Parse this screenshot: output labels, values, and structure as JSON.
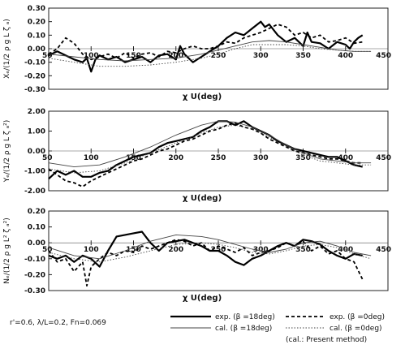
{
  "chart_data": [
    {
      "type": "line",
      "ylabel": "Xₑ/(1/2 ρ g L ζ ₐ)",
      "xlabel": "χ U(deg)",
      "xlim": [
        50,
        450
      ],
      "ylim": [
        -0.3,
        0.3
      ],
      "xticks": [
        "50",
        "100",
        "150",
        "200",
        "250",
        "300",
        "350",
        "400",
        "450"
      ],
      "yticks": [
        "0.30",
        "0.20",
        "0.10",
        "0.00",
        "-0.10",
        "-0.20",
        "-0.30"
      ],
      "grid": false,
      "series": [
        {
          "key": "exp18",
          "x": [
            50,
            60,
            70,
            80,
            90,
            95,
            100,
            105,
            110,
            120,
            130,
            140,
            150,
            160,
            170,
            180,
            190,
            200,
            205,
            210,
            220,
            230,
            240,
            250,
            260,
            270,
            280,
            290,
            300,
            305,
            310,
            320,
            330,
            340,
            350,
            355,
            360,
            370,
            380,
            390,
            400,
            405,
            410,
            415,
            420
          ],
          "y": [
            -0.05,
            -0.02,
            -0.05,
            -0.08,
            -0.1,
            -0.07,
            -0.17,
            -0.08,
            -0.05,
            -0.08,
            -0.06,
            -0.1,
            -0.08,
            -0.06,
            -0.1,
            -0.05,
            -0.04,
            -0.08,
            0.02,
            -0.04,
            -0.1,
            -0.06,
            -0.02,
            0.02,
            0.08,
            0.12,
            0.1,
            0.15,
            0.2,
            0.16,
            0.18,
            0.1,
            0.05,
            0.08,
            0.02,
            0.12,
            0.05,
            0.04,
            0.0,
            0.05,
            0.03,
            0.0,
            0.05,
            0.08,
            0.1
          ]
        },
        {
          "key": "exp0",
          "x": [
            50,
            60,
            70,
            80,
            90,
            100,
            110,
            120,
            130,
            140,
            150,
            160,
            170,
            180,
            190,
            200,
            210,
            220,
            230,
            240,
            250,
            260,
            270,
            280,
            290,
            300,
            310,
            320,
            330,
            340,
            350,
            360,
            370,
            380,
            390,
            400,
            410,
            420
          ],
          "y": [
            -0.04,
            0.0,
            0.08,
            0.04,
            -0.04,
            -0.08,
            -0.06,
            -0.04,
            -0.07,
            -0.03,
            -0.07,
            -0.04,
            -0.03,
            -0.06,
            -0.02,
            -0.03,
            0.0,
            0.02,
            0.0,
            0.0,
            0.02,
            0.05,
            0.04,
            0.08,
            0.1,
            0.12,
            0.15,
            0.18,
            0.16,
            0.1,
            0.12,
            0.08,
            0.1,
            0.05,
            0.06,
            0.08,
            0.04,
            0.05
          ]
        },
        {
          "key": "cal18",
          "x": [
            50,
            80,
            110,
            140,
            170,
            200,
            230,
            250,
            270,
            290,
            310,
            330,
            350,
            370,
            390,
            410,
            430
          ],
          "y": [
            -0.04,
            -0.06,
            -0.08,
            -0.09,
            -0.08,
            -0.07,
            -0.04,
            -0.01,
            0.02,
            0.05,
            0.06,
            0.05,
            0.03,
            0.01,
            -0.01,
            -0.02,
            -0.02
          ]
        },
        {
          "key": "cal0",
          "x": [
            50,
            80,
            110,
            140,
            170,
            200,
            230,
            250,
            270,
            290,
            310,
            330,
            350,
            370,
            390,
            410,
            430
          ],
          "y": [
            -0.07,
            -0.1,
            -0.13,
            -0.13,
            -0.12,
            -0.1,
            -0.07,
            -0.04,
            0.0,
            0.03,
            0.03,
            0.03,
            0.02,
            0.0,
            -0.01,
            -0.02,
            -0.02
          ]
        }
      ]
    },
    {
      "type": "line",
      "ylabel": "Yₑ/(1/2 ρ g L ζ ₐ²)",
      "xlabel": "χ U(deg)",
      "xlim": [
        50,
        450
      ],
      "ylim": [
        -2.0,
        2.0
      ],
      "xticks": [
        "50",
        "100",
        "150",
        "200",
        "250",
        "300",
        "350",
        "400",
        "450"
      ],
      "yticks": [
        "2.00",
        "1.00",
        "0.00",
        "-1.00",
        "-2.00"
      ],
      "grid": false,
      "series": [
        {
          "key": "exp18",
          "x": [
            50,
            60,
            70,
            80,
            90,
            100,
            110,
            120,
            130,
            140,
            150,
            160,
            170,
            180,
            190,
            200,
            210,
            220,
            230,
            240,
            250,
            260,
            270,
            280,
            290,
            300,
            310,
            320,
            330,
            340,
            350,
            360,
            370,
            380,
            390,
            400,
            410,
            420
          ],
          "y": [
            -1.4,
            -1.0,
            -1.2,
            -1.0,
            -1.3,
            -1.3,
            -1.1,
            -1.0,
            -0.7,
            -0.5,
            -0.3,
            -0.2,
            -0.1,
            0.2,
            0.4,
            0.5,
            0.6,
            0.7,
            1.0,
            1.2,
            1.5,
            1.5,
            1.3,
            1.5,
            1.2,
            1.0,
            0.8,
            0.5,
            0.3,
            0.1,
            0.0,
            -0.1,
            -0.2,
            -0.3,
            -0.3,
            -0.5,
            -0.7,
            -0.8
          ]
        },
        {
          "key": "exp0",
          "x": [
            50,
            60,
            70,
            80,
            90,
            100,
            110,
            120,
            130,
            140,
            150,
            160,
            170,
            180,
            190,
            200,
            210,
            220,
            230,
            240,
            250,
            260,
            270,
            280,
            290,
            300,
            310,
            320,
            330,
            340,
            350,
            360,
            370,
            380,
            390,
            400,
            410,
            420
          ],
          "y": [
            -0.9,
            -1.2,
            -1.5,
            -1.6,
            -1.8,
            -1.5,
            -1.3,
            -1.1,
            -0.9,
            -0.7,
            -0.5,
            -0.4,
            -0.2,
            0.0,
            0.1,
            0.3,
            0.5,
            0.6,
            0.8,
            1.0,
            1.1,
            1.3,
            1.4,
            1.2,
            1.1,
            0.9,
            0.6,
            0.4,
            0.2,
            0.0,
            -0.1,
            -0.2,
            -0.3,
            -0.4,
            -0.4,
            -0.5,
            -0.6,
            -0.6
          ]
        },
        {
          "key": "cal18",
          "x": [
            50,
            80,
            110,
            140,
            170,
            200,
            230,
            250,
            270,
            290,
            310,
            330,
            350,
            370,
            390,
            410,
            430
          ],
          "y": [
            -0.6,
            -0.8,
            -0.7,
            -0.3,
            0.2,
            0.8,
            1.3,
            1.5,
            1.45,
            1.2,
            0.8,
            0.3,
            -0.1,
            -0.4,
            -0.5,
            -0.6,
            -0.6
          ]
        },
        {
          "key": "cal0",
          "x": [
            50,
            80,
            110,
            140,
            170,
            200,
            230,
            250,
            270,
            290,
            310,
            330,
            350,
            370,
            390,
            410,
            430
          ],
          "y": [
            -0.9,
            -1.1,
            -1.0,
            -0.6,
            -0.1,
            0.4,
            0.9,
            1.2,
            1.3,
            1.1,
            0.7,
            0.2,
            -0.2,
            -0.5,
            -0.6,
            -0.7,
            -0.7
          ]
        }
      ]
    },
    {
      "type": "line",
      "ylabel": "Nₑ/(1/2 ρ g L² ζ ₐ²)",
      "xlabel": "χ U(deg)",
      "xlim": [
        50,
        450
      ],
      "ylim": [
        -0.3,
        0.2
      ],
      "xticks": [
        "50",
        "100",
        "150",
        "200",
        "250",
        "300",
        "350",
        "400",
        "450"
      ],
      "yticks": [
        "0.20",
        "0.10",
        "0.00",
        "-0.10",
        "-0.20",
        "-0.30"
      ],
      "grid": false,
      "series": [
        {
          "key": "exp18",
          "x": [
            50,
            60,
            70,
            80,
            90,
            100,
            110,
            120,
            130,
            140,
            150,
            160,
            170,
            180,
            190,
            200,
            210,
            220,
            230,
            240,
            250,
            260,
            270,
            280,
            290,
            300,
            310,
            320,
            330,
            340,
            350,
            360,
            370,
            380,
            390,
            400,
            410,
            420
          ],
          "y": [
            -0.08,
            -0.1,
            -0.08,
            -0.12,
            -0.08,
            -0.1,
            -0.15,
            -0.05,
            0.04,
            0.05,
            0.06,
            0.07,
            0.0,
            -0.05,
            0.0,
            0.01,
            0.02,
            0.0,
            -0.02,
            -0.05,
            -0.05,
            -0.08,
            -0.12,
            -0.14,
            -0.1,
            -0.08,
            -0.05,
            -0.02,
            0.0,
            -0.02,
            0.02,
            0.01,
            -0.01,
            -0.05,
            -0.08,
            -0.1,
            -0.07,
            -0.08
          ]
        },
        {
          "key": "exp0",
          "x": [
            50,
            60,
            70,
            80,
            90,
            95,
            100,
            110,
            120,
            130,
            140,
            150,
            160,
            170,
            180,
            190,
            200,
            210,
            220,
            230,
            240,
            250,
            260,
            270,
            280,
            290,
            300,
            310,
            320,
            330,
            340,
            350,
            360,
            370,
            380,
            390,
            400,
            410,
            420
          ],
          "y": [
            -0.05,
            -0.12,
            -0.1,
            -0.18,
            -0.12,
            -0.27,
            -0.15,
            -0.1,
            -0.06,
            -0.08,
            -0.05,
            -0.06,
            -0.02,
            -0.04,
            -0.02,
            0.0,
            0.02,
            0.01,
            -0.02,
            0.0,
            -0.05,
            -0.02,
            -0.04,
            -0.06,
            -0.03,
            -0.08,
            -0.06,
            -0.05,
            -0.03,
            0.0,
            -0.02,
            0.01,
            -0.05,
            -0.02,
            -0.07,
            -0.05,
            -0.1,
            -0.12,
            -0.23
          ]
        },
        {
          "key": "cal18",
          "x": [
            50,
            80,
            110,
            140,
            170,
            200,
            230,
            250,
            270,
            290,
            310,
            330,
            350,
            370,
            390,
            410,
            430
          ],
          "y": [
            -0.03,
            -0.08,
            -0.1,
            -0.05,
            0.01,
            0.05,
            0.04,
            0.02,
            -0.01,
            -0.04,
            -0.06,
            -0.04,
            0.0,
            0.01,
            -0.02,
            -0.06,
            -0.08
          ]
        },
        {
          "key": "cal0",
          "x": [
            50,
            80,
            110,
            140,
            170,
            200,
            230,
            250,
            270,
            290,
            310,
            330,
            350,
            370,
            390,
            410,
            430
          ],
          "y": [
            -0.06,
            -0.1,
            -0.12,
            -0.09,
            -0.05,
            -0.01,
            0.0,
            -0.01,
            -0.03,
            -0.06,
            -0.07,
            -0.05,
            -0.02,
            -0.01,
            -0.03,
            -0.07,
            -0.1
          ]
        }
      ]
    }
  ],
  "legend": {
    "placement": "bottom-right",
    "items": [
      {
        "key": "exp18",
        "label": "exp. (β =18deg)"
      },
      {
        "key": "exp0",
        "label": "exp. (β =0deg)"
      },
      {
        "key": "cal18",
        "label": "cal. (β =18deg)"
      },
      {
        "key": "cal0",
        "label": "cal. (β =0deg)"
      }
    ],
    "note": "(cal.: Present method)"
  },
  "conditions": "r'=0.6,  λ/L=0.2,  Fn=0.069",
  "styles": {
    "exp18": {
      "color": "#000000",
      "dash": "none"
    },
    "exp0": {
      "color": "#000000",
      "dash": "4 3"
    },
    "cal18": {
      "color": "#444444",
      "dash": "none"
    },
    "cal0": {
      "color": "#444444",
      "dash": "1.5 2"
    }
  }
}
